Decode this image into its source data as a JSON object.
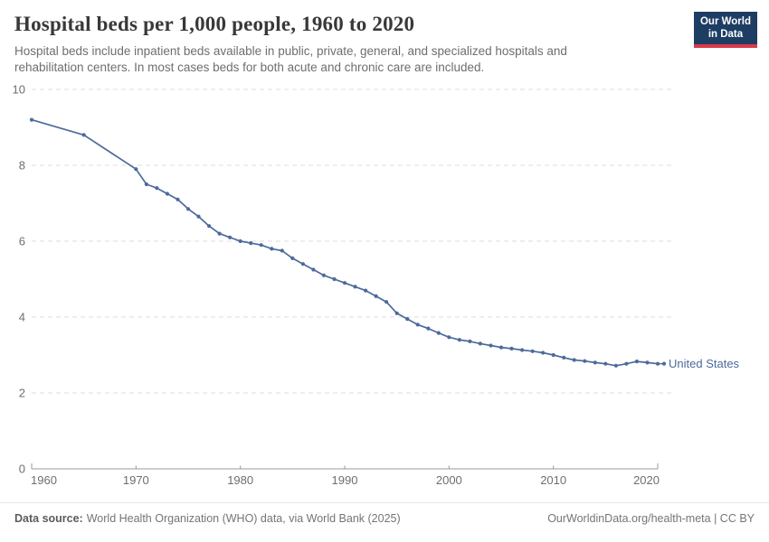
{
  "header": {
    "title": "Hospital beds per 1,000 people, 1960 to 2020",
    "subtitle": "Hospital beds include inpatient beds available in public, private, general, and specialized hospitals and rehabilitation centers. In most cases beds for both acute and chronic care are included.",
    "logo": {
      "line1": "Our World",
      "line2": "in Data",
      "bg_color": "#1D3D63",
      "accent_color": "#D93A4C"
    }
  },
  "chart_data": {
    "type": "line",
    "title": "Hospital beds per 1,000 people, 1960 to 2020",
    "xlabel": "",
    "ylabel": "",
    "xlim": [
      1960,
      2020
    ],
    "ylim": [
      0,
      10
    ],
    "xticks": [
      1960,
      1970,
      1980,
      1990,
      2000,
      2010,
      2020
    ],
    "yticks": [
      0,
      2,
      4,
      6,
      8,
      10
    ],
    "grid": "horizontal-dashed",
    "legend_position": "end-of-line-label",
    "series": [
      {
        "name": "United States",
        "color": "#4C6A9C",
        "points": [
          [
            1960,
            9.2
          ],
          [
            1965,
            8.8
          ],
          [
            1970,
            7.9
          ],
          [
            1971,
            7.5
          ],
          [
            1972,
            7.4
          ],
          [
            1973,
            7.25
          ],
          [
            1974,
            7.1
          ],
          [
            1975,
            6.85
          ],
          [
            1976,
            6.65
          ],
          [
            1977,
            6.4
          ],
          [
            1978,
            6.2
          ],
          [
            1979,
            6.1
          ],
          [
            1980,
            6.0
          ],
          [
            1981,
            5.95
          ],
          [
            1982,
            5.9
          ],
          [
            1983,
            5.8
          ],
          [
            1984,
            5.75
          ],
          [
            1985,
            5.55
          ],
          [
            1986,
            5.4
          ],
          [
            1987,
            5.25
          ],
          [
            1988,
            5.1
          ],
          [
            1989,
            5.0
          ],
          [
            1990,
            4.9
          ],
          [
            1991,
            4.8
          ],
          [
            1992,
            4.7
          ],
          [
            1993,
            4.55
          ],
          [
            1994,
            4.4
          ],
          [
            1995,
            4.1
          ],
          [
            1996,
            3.95
          ],
          [
            1997,
            3.8
          ],
          [
            1998,
            3.7
          ],
          [
            1999,
            3.58
          ],
          [
            2000,
            3.47
          ],
          [
            2001,
            3.4
          ],
          [
            2002,
            3.36
          ],
          [
            2003,
            3.3
          ],
          [
            2004,
            3.25
          ],
          [
            2005,
            3.2
          ],
          [
            2006,
            3.17
          ],
          [
            2007,
            3.13
          ],
          [
            2008,
            3.1
          ],
          [
            2009,
            3.06
          ],
          [
            2010,
            3.0
          ],
          [
            2011,
            2.93
          ],
          [
            2012,
            2.87
          ],
          [
            2013,
            2.84
          ],
          [
            2014,
            2.8
          ],
          [
            2015,
            2.77
          ],
          [
            2016,
            2.72
          ],
          [
            2017,
            2.77
          ],
          [
            2018,
            2.83
          ],
          [
            2019,
            2.8
          ],
          [
            2020,
            2.77
          ]
        ]
      }
    ]
  },
  "footer": {
    "source_label": "Data source:",
    "source_text": "World Health Organization (WHO) data, via World Bank (2025)",
    "link_text": "OurWorldinData.org/health-meta | CC BY"
  }
}
